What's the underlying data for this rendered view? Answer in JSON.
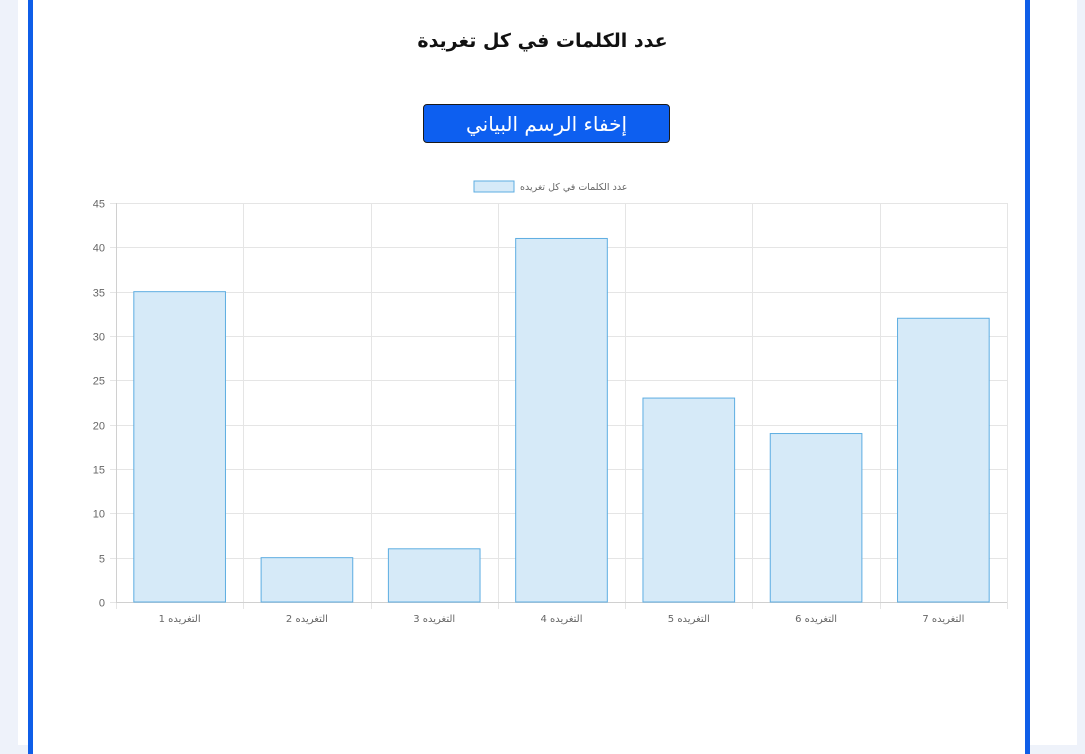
{
  "page": {
    "heading": "عدد الكلمات في كل تغريدة",
    "toggle_button_label": "إخفاء الرسم البياني"
  },
  "colors": {
    "frame": "#0f5ee8",
    "button": "#0d5ff0",
    "bar_fill": "#d6eaf8",
    "bar_border": "#5dade2",
    "grid": "#e5e5e5"
  },
  "chart_data": {
    "type": "bar",
    "title": "",
    "legend": [
      "عدد الكلمات في كل تغريده"
    ],
    "legend_position": "top-center",
    "categories": [
      "التغريده 1",
      "التغريده 2",
      "التغريده 3",
      "التغريده 4",
      "التغريده 5",
      "التغريده 6",
      "التغريده 7"
    ],
    "series": [
      {
        "name": "عدد الكلمات في كل تغريده",
        "values": [
          35,
          5,
          6,
          41,
          23,
          19,
          32
        ]
      }
    ],
    "ylim": [
      0,
      45
    ],
    "yticks": [
      0,
      5,
      10,
      15,
      20,
      25,
      30,
      35,
      40,
      45
    ],
    "grid": true,
    "xlabel": "",
    "ylabel": ""
  }
}
